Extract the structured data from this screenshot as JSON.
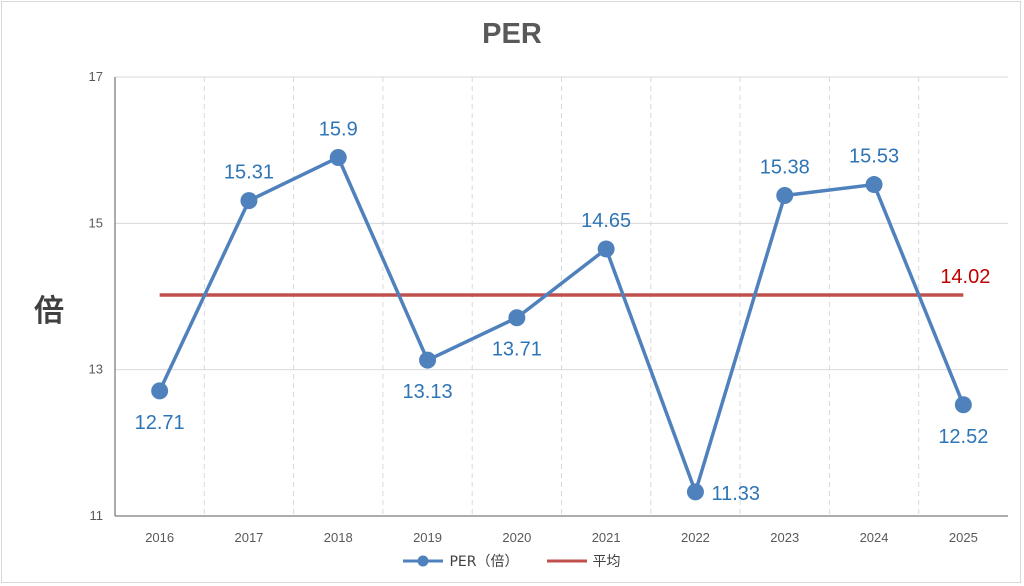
{
  "chart_data": {
    "type": "line",
    "title": "PER",
    "ylabel": "倍",
    "xlabel": "",
    "categories": [
      "2016",
      "2017",
      "2018",
      "2019",
      "2020",
      "2021",
      "2022",
      "2023",
      "2024",
      "2025"
    ],
    "ylim": [
      11,
      17
    ],
    "yticks": [
      11,
      13,
      15,
      17
    ],
    "grid": {
      "horizontal": true,
      "vertical": true,
      "vertical_style": "dashed"
    },
    "legend": "bottom",
    "series": [
      {
        "name": "PER（倍）",
        "values": [
          12.71,
          15.31,
          15.9,
          13.13,
          13.71,
          14.65,
          11.33,
          15.38,
          15.53,
          12.52
        ],
        "labels": [
          "12.71",
          "15.31",
          "15.9",
          "13.13",
          "13.71",
          "14.65",
          "11.33",
          "15.38",
          "15.53",
          "12.52"
        ],
        "label_position": [
          "below",
          "above",
          "above",
          "below",
          "below",
          "above",
          "right",
          "above",
          "above",
          "below"
        ],
        "color": "#4f81bd",
        "label_color": "#2e75b6",
        "marker": "circle"
      },
      {
        "name": "平均",
        "values": [
          14.02,
          14.02,
          14.02,
          14.02,
          14.02,
          14.02,
          14.02,
          14.02,
          14.02,
          14.02
        ],
        "end_label": "14.02",
        "color": "#c0504d",
        "label_color": "#c00000"
      }
    ]
  }
}
